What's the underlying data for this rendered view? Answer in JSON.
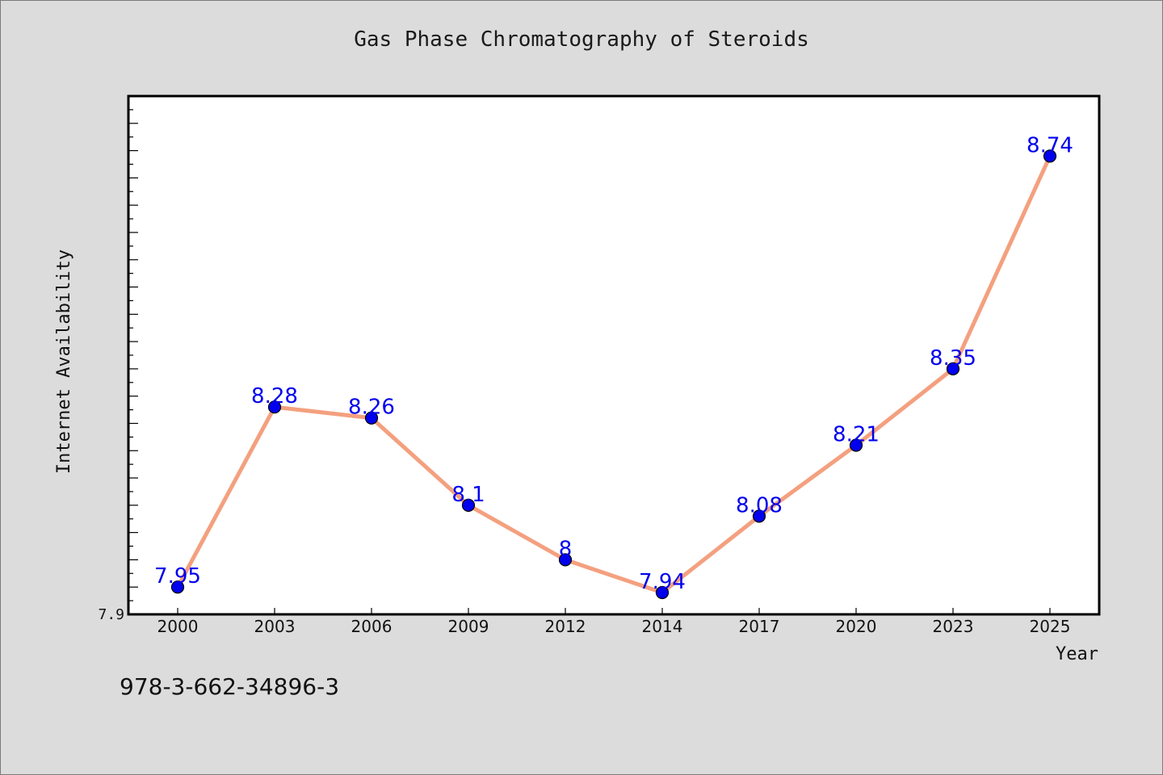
{
  "page": {
    "footnote": "978-3-662-34896-3"
  },
  "colors": {
    "background": "#dcdcdc",
    "plot_background": "#ffffff",
    "line": "#f4a07f",
    "marker": "#0000ee",
    "data_label": "#0000ee"
  },
  "chart_data": {
    "type": "line",
    "title": "Gas Phase Chromatography of Steroids",
    "xlabel": "Year",
    "ylabel": "Internet Availability",
    "categories": [
      "2000",
      "2003",
      "2006",
      "2009",
      "2012",
      "2014",
      "2017",
      "2020",
      "2023",
      "2025"
    ],
    "values": [
      7.95,
      8.28,
      8.26,
      8.1,
      8,
      7.94,
      8.08,
      8.21,
      8.35,
      8.74
    ],
    "data_labels": [
      "7.95",
      "8.28",
      "8.26",
      "8.1",
      "8",
      "7.94",
      "8.08",
      "8.21",
      "8.35",
      "8.74"
    ],
    "ylim": [
      7.9,
      8.85
    ],
    "y_tick_labels": [
      "7.9"
    ],
    "grid": false,
    "legend": "none"
  }
}
